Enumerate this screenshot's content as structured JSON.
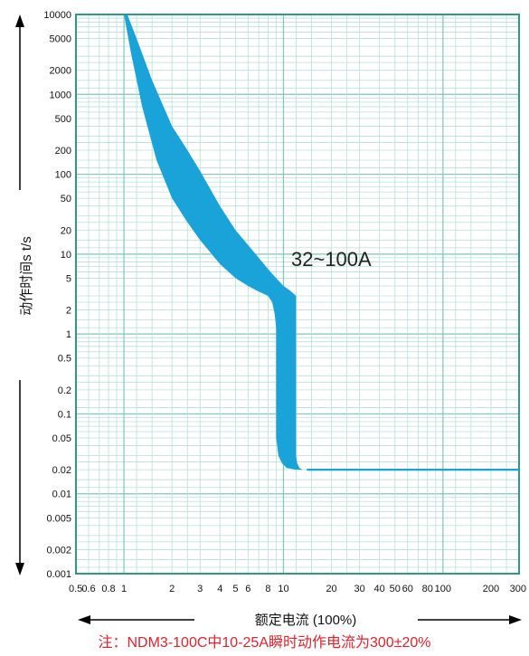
{
  "chart_data": {
    "type": "area",
    "xlabel": "额定电流 (100%)",
    "ylabel": "动作时间s t/s",
    "x_scale": "log",
    "y_scale": "log",
    "xlim": [
      0.5,
      300
    ],
    "ylim": [
      0.001,
      10000
    ],
    "grid": true,
    "x_ticks": [
      "0.5",
      "0.6",
      "0.8",
      "1",
      "2",
      "3",
      "4",
      "5",
      "6",
      "8",
      "10",
      "20",
      "30",
      "40",
      "50",
      "60",
      "80",
      "100",
      "200",
      "300"
    ],
    "y_ticks": [
      "10000",
      "5000",
      "2000",
      "1000",
      "500",
      "200",
      "100",
      "50",
      "20",
      "10",
      "5",
      "2",
      "1",
      "0.5",
      "0.2",
      "0.1",
      "0.05",
      "0.02",
      "0.01",
      "0.005",
      "0.002",
      "0.001"
    ],
    "annotations": [
      "32~100A"
    ],
    "series": [
      {
        "fill_color": "#1aa3d9",
        "upper": {
          "x": [
            1.05,
            1.2,
            1.5,
            2,
            2.5,
            3,
            4,
            5,
            6,
            7,
            8,
            9,
            10,
            11,
            12,
            12,
            12.2,
            12.6,
            13.2,
            14,
            300
          ],
          "y": [
            10000,
            5000,
            1500,
            400,
            200,
            110,
            40,
            20,
            13,
            9,
            6.5,
            5,
            4,
            3.5,
            3,
            0.03,
            0.024,
            0.021,
            0.02,
            0.02,
            0.02
          ]
        },
        "lower": {
          "x": [
            1.0,
            1.1,
            1.3,
            1.6,
            2,
            2.5,
            3,
            4,
            5,
            6,
            7,
            8,
            8.5,
            8.8,
            9,
            9,
            9.3,
            9.8,
            10.5,
            12,
            14
          ],
          "y": [
            10000,
            3500,
            700,
            150,
            50,
            25,
            15,
            7.5,
            5,
            4,
            3.4,
            3,
            2.5,
            1.8,
            1.2,
            0.05,
            0.03,
            0.024,
            0.021,
            0.02,
            0.02
          ]
        }
      }
    ]
  },
  "footnote": "注：NDM3-100C中10-25A瞬时动作电流为300±20%"
}
